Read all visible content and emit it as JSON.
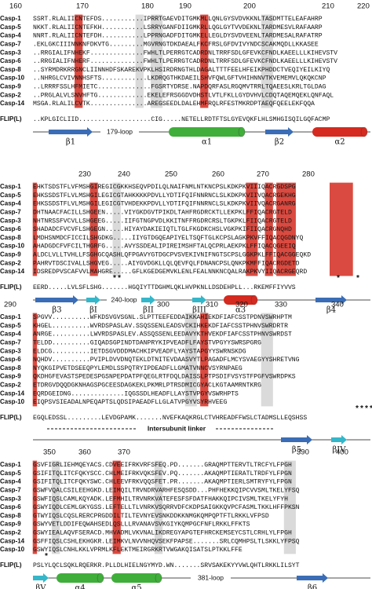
{
  "blocks": [
    {
      "ruler": [
        160,
        170,
        180,
        190,
        200,
        210,
        220
      ],
      "rows": [
        {
          "name": "Casp-1",
          "seq": "SSRT.RLALIICNTEFDS...........IPRRTGAEVDITGMKMLLQNLGYSVDVKKNLTASDMTTELEAFAHRP"
        },
        {
          "name": "Casp-5",
          "seq": "NKKT.RLALIICNTEFKH...........LSRRYGANFDIIGMKRLLQGLGYTVVDEKNLTARDMESVLRAFAARP"
        },
        {
          "name": "Casp-4",
          "seq": "NNRT.RLALIICNTEFDH...........LPPRNGADFDITGMKELLEGLDYSVDVEENLTARDMESALRAFATRP"
        },
        {
          "name": "Casp-7",
          "seq": ".EKLGKCIIINNKNFDKVTG.........MGVRNGTDKDAEALFKCFRSLGFDVIVYNDCSCAKMQDLLKKASEE"
        },
        {
          "name": "Casp-3",
          "seq": "..RRGIALIFNHEKF..............FWHLTLPERRGTCADRDNLTRRFSDLGFEVKCFNDLKAEELLLKIHEVSTV"
        },
        {
          "name": "Casp-6",
          "seq": "..RRGIALIFNHERF..............FWHLTLPERRGTCADRDNLTRRFSDLGFEVKCFNDLKAEELLLKIHEVSTV"
        },
        {
          "name": "Casp-8",
          "seq": "..SYRMDRKRRGNCLIINNHDFSKAREKVPKLHSIRDRNGTHLDAGALTTTFEELHFEIKPHDDCTVEQIYEILKIYQ"
        },
        {
          "name": "Casp-10",
          "seq": "..NHRGLCVIVNNHSFTS............LKDRQGTHKDAEILSHVFQWLGFTVHIHNNVTKVEMEMVLQKQKCNP"
        },
        {
          "name": "Casp-9",
          "seq": "..LRRRFSSLHFMIETC..............FGSRTYDRSE.NAPDQRFASLRGQMVTRRLTQAEESLKRLTGLDAG"
        },
        {
          "name": "Casp-2",
          "seq": "..PRGLALVLSNVHFTG.............EKELEFRSGGDVDHSTLVTLFKLLGYDVHVLCDQTAQEMQEKLQNFAQL"
        },
        {
          "name": "Casp-14",
          "seq": "MSGA.RLALILCVTK...............AREGSEEDLDALEHMFRQLRFESTMKRDPTAEQFQEELEKFQQA"
        }
      ],
      "flip": {
        "name": "FLIP(L)",
        "seq": "..KPLGICLIID...................CIG.....NETELLRDTFTSLGYEVQKFLHLSMHGISQILGQFACMP"
      },
      "structure": [
        "β1",
        "179-loop",
        "α1",
        "β2",
        "α2"
      ],
      "notes": []
    },
    {
      "ruler": [
        230,
        240,
        250,
        260,
        270,
        280
      ],
      "rows": [
        {
          "name": "Casp-1",
          "seq": "EHKTSDSTFLVFMSHGIREGICGKKHSEQVPDILQLNAIFNMLNTKNCPSLKDKPKVIIIQACRGDSPG"
        },
        {
          "name": "Casp-5",
          "seq": "EHKSSDSTFLVLMSHGILEGICGTAHKKKKPDVLLYDTIFQIFNNRNCLSLKDKPKVIIVQACRGEKHG"
        },
        {
          "name": "Casp-4",
          "seq": "EHKSSDSTFLVLMSHGILEGICGTVHDEKKPDVLLYDTIFQIFNNRNCLSLKDKPKVIIVQACRGANRG"
        },
        {
          "name": "Casp-7",
          "seq": "DHTNAACFACILLSHGEEN.....VIYGKDGVTPIKDLTAHFRGDRCKTLLEKPKLFFIQACRGTELD"
        },
        {
          "name": "Casp-3",
          "seq": "NHTNRSSFVCVLLSHGEEG.....IIFGTNGPVDLKKITNFFRGDRCRSLTGKPKLFIIQACRGTELD"
        },
        {
          "name": "Casp-6",
          "seq": "SHADADCFVCVFLSHGEGN.....HIYAYDAKIEIQTLTGLFKGDKCHSLVGKPKIFIIQACRGNQHD"
        },
        {
          "name": "Casp-8",
          "seq": "LMDHSNMDCFICCILSHGDKG.....IIYGTDGQEAPIYELTSQFTGLKCPSLAGKPKVFFIQACQGDNYQ"
        },
        {
          "name": "Casp-10",
          "seq": "AHADGDCFVFCILTHGRFG.....AVYSSDEALIPIREIMSHFTALQCPRLAEKPKLFFIQACQGEEIQ"
        },
        {
          "name": "Casp-9",
          "seq": "ALDCLVLLTVHLLFSGHGCQASHLQFPGAVYGTDGCPVSVEKIVNIFNGTSCPSLGGKPKLFFIQACGGEQKD"
        },
        {
          "name": "Casp-2",
          "seq": "PAHRVTDSCIVALLSHGVEG.....AIYGVDGKLLQLQEVFQLFDNANCPSLQNKPKMFFIQACRGDETD"
        },
        {
          "name": "Casp-14",
          "seq": "IDSREDPVSCAFVVLMAHGRE.....GFLKGEDGEMVKLENLFEALNNKNCQALRAKPKVYIIQACRGEQRD"
        }
      ],
      "flip": {
        "name": "FLIP(L)",
        "seq": "EERD.....LVLSFLSHG.......HGQIYTTDGHMLQKLHVPKNLLDSDEHPLL...RKEMFFIYVVS"
      },
      "structure": [
        "β3",
        "βI",
        "240-loop",
        "βII",
        "βIII",
        "α3",
        "β4"
      ],
      "notes": [
        "**",
        "*",
        "*"
      ]
    },
    {
      "ruler": [
        290,
        300,
        310,
        320,
        330,
        340
      ],
      "rows": [
        {
          "name": "Casp-1",
          "seq": "SPGVV..........WFKDSVGVSGNL.SLPTTEEFEDDAIKKAHIEKDFIAFCSSTPDNVSWRHPTM"
        },
        {
          "name": "Casp-5",
          "seq": "KHGEL..........WVRDSPASLAV.SSQSSENLEADSVCKIHKEKDFIAFCSSTPHNVSWRDRTR"
        },
        {
          "name": "Casp-4",
          "seq": "ANRGE..........LWVRDSPASLEV.ASSQSSENLEEDAVYKTHVEKDFIAFCSSTPHNVSWRDST"
        },
        {
          "name": "Casp-7",
          "seq": "TELDD..........GIQADSGPINDTDANPRYKIPVEADFLFAYSTVPGYYSWRSPGRG"
        },
        {
          "name": "Casp-3",
          "seq": "ELDCG..........IETDSGVDDDMACHKIPVEADFLYAYSTAPGYYSWRNSKDG"
        },
        {
          "name": "Casp-6",
          "seq": "NQHDV..........PVIPLDVVDNQTEKLDTNITEVDAASVYTLPAGADFLMCYSVAEGYYSHRETVNG"
        },
        {
          "name": "Casp-8",
          "seq": "NYQKGIPVETDSEEQPYLEMDLSSPQTRYIPDEADFLLGMATVNNCVSYRNPAEG"
        },
        {
          "name": "Casp-9",
          "seq": "QKDHGFEVASTSPEDESPGSNPEPDATPFQEGLRTFDQLDAISSLPTPSDIFVSYSTFPGFVSWRDPKS"
        },
        {
          "name": "Casp-2",
          "seq": "ETDRGVDQQDGKNHAGSPGCEESDAGKEKLPKMRLPTRSDMICGYACLKGTAAMRNTKRG"
        },
        {
          "name": "Casp-14",
          "seq": "EQRDGEIDNG..............IQGSSDLHEADFLLAYSTVPGYVSWRHPTS"
        },
        {
          "name": "Casp-10",
          "seq": "EIQPSVSIEADALNPEQAPTSLQDSIPAEADFLLGLATVPGYVSYRHVEEG"
        }
      ],
      "flip": {
        "name": "FLIP(L)",
        "seq": "EGQLEDSSL.........LEVDGPAMK.......NVEFKAQKRGLCTVHREADFFWSLCTADMSLLEQSHSS"
      },
      "linker": "Intersubunit linker",
      "structure": [
        "β5",
        "βIV"
      ],
      "notes": [
        "****"
      ]
    },
    {
      "ruler": [
        350,
        360,
        370,
        390,
        400
      ],
      "rows": [
        {
          "name": "Casp-1",
          "seq": "GSVFIGRLIEHMQEYACS.CDVEEIFRKVRFSFEQ.PD.......GRAQMPTTERVTLTRCFYLFPGH"
        },
        {
          "name": "Casp-5",
          "seq": "GSIFITQLITCFQKYSCC.CHLMEIFRKVQKSFEV.PQ.......AKAQMPTIERATLTRDFYLFPGN"
        },
        {
          "name": "Casp-4",
          "seq": "GSIFITQLITCFQKYSWC.CHLEEVFRKVQQSFET.PR.......AKAQMPTIERLSMTRYFYLFPGN"
        },
        {
          "name": "Casp-7",
          "seq": "GSWFVQALCSILEEHGKD.LEIMQILTRVNDRVARHFESQSDD...PHFHEKKQIPCVVSMLTKELYFSQ"
        },
        {
          "name": "Casp-3",
          "seq": "GSWFIQSLCAMLKQYADK.LEFMHILTRVNRKVATEFESFSFDATFHAKKQIPCIVSMLTKELYFYH"
        },
        {
          "name": "Casp-6",
          "seq": "GSWYIQDLCEMLGKYGSS.LEFTELLTLVNRKVSQRRVDFCKDPSAIGKKQVPCFASMLTKKLHFFPKSN"
        },
        {
          "name": "Casp-8",
          "seq": "GTWYIQSLCQSLRERCPRGDDILTILTEVNYEVSNKDDKKNMGKQMPQPTFTLRKKLVFPSD"
        },
        {
          "name": "Casp-9",
          "seq": "GSWYVETLDDIFEQWAHSEDLQSLLLRVANAVSVKGIYKQMPGCFNFLRKKLFFKTS"
        },
        {
          "name": "Casp-2",
          "seq": "GSWYIEALAQVFSERACD.MHVADMLVKVNALIKDREGYAPGTEFHRCKEMSEYCSTLCRHLYLFPGH"
        },
        {
          "name": "Casp-14",
          "seq": "GSFFIQSLCSHLEKHGKR.LEIMKVLNVVNHQVSEKFPAPSE.......SRLCQMHPSLTLSKKLYFPSQ"
        },
        {
          "name": "Casp-10",
          "seq": "GSWYIQSLCNHLKKLVPRMLKFLEKTMEIRGRKRTVWGAKQISATSLPTKKLFFE"
        }
      ],
      "flip": {
        "name": "FLIP(L)",
        "seq": "PSLYLQCLSQKLRQERKR.PLLDLHIELNGYMYD.WN.......SRVSAKEKYYVWLQHTLRKKLILSYT"
      },
      "structure": [
        "βV",
        "α4",
        "α5",
        "381-loop",
        "β6"
      ],
      "notes": [
        "*"
      ]
    }
  ]
}
